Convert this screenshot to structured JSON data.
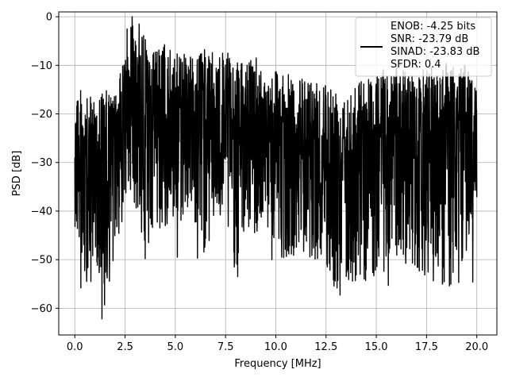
{
  "chart_data": {
    "type": "line",
    "title": "",
    "xlabel": "Frequency [MHz]",
    "ylabel": "PSD [dB]",
    "xlim": [
      -0.8,
      21.0
    ],
    "ylim": [
      -65.5,
      1.0
    ],
    "xticks": [
      0.0,
      2.5,
      5.0,
      7.5,
      10.0,
      12.5,
      15.0,
      17.5,
      20.0
    ],
    "xtick_labels": [
      "0.0",
      "2.5",
      "5.0",
      "7.5",
      "10.0",
      "12.5",
      "15.0",
      "17.5",
      "20.0"
    ],
    "yticks": [
      0,
      -10,
      -20,
      -30,
      -40,
      -50,
      -60
    ],
    "ytick_labels": [
      "0",
      "−10",
      "−20",
      "−30",
      "−40",
      "−50",
      "−60"
    ],
    "grid": true,
    "legend_position": "upper-right",
    "legend": [
      "ENOB: -4.25 bits",
      "SNR: -23.79 dB",
      "SINAD: -23.83 dB",
      "SFDR: 0.4"
    ],
    "series": [
      {
        "color": "#000000",
        "envelope": {
          "x": [
            0.0,
            0.5,
            1.0,
            1.5,
            2.0,
            2.3,
            2.5,
            2.7,
            2.8,
            3.0,
            3.2,
            3.5,
            4.0,
            4.5,
            5.0,
            5.5,
            6.0,
            6.5,
            7.0,
            7.5,
            8.0,
            8.5,
            9.0,
            9.5,
            10.0,
            11.0,
            12.0,
            13.0,
            14.0,
            15.0,
            16.0,
            17.0,
            18.0,
            19.0,
            20.0
          ],
          "upper": [
            -12,
            -17,
            -16,
            -15,
            -16,
            -11,
            -8,
            -3,
            0,
            -1,
            -2,
            -4,
            -7,
            -5,
            -8,
            -6,
            -9,
            -6,
            -8,
            -7,
            -9,
            -10,
            -7,
            -13,
            -10,
            -13,
            -12,
            -14,
            -13,
            -11,
            -10,
            -12,
            -9,
            -8,
            -13
          ],
          "lower": [
            -43,
            -56,
            -48,
            -62,
            -46,
            -45,
            -39,
            -37,
            -35,
            -40,
            -42,
            -50,
            -45,
            -44,
            -45,
            -41,
            -43,
            -50,
            -42,
            -44,
            -53,
            -44,
            -46,
            -43,
            -50,
            -49,
            -50,
            -57,
            -55,
            -54,
            -50,
            -52,
            -55,
            -58,
            -38
          ]
        },
        "dips": [
          {
            "x": 0.3,
            "y": -55.8
          },
          {
            "x": 0.8,
            "y": -54.5
          },
          {
            "x": 1.1,
            "y": -50.5
          },
          {
            "x": 1.35,
            "y": -62.2
          },
          {
            "x": 1.9,
            "y": -50.2
          },
          {
            "x": 3.5,
            "y": -49.8
          },
          {
            "x": 5.1,
            "y": -49.5
          },
          {
            "x": 6.1,
            "y": -49.7
          },
          {
            "x": 8.1,
            "y": -53.5
          },
          {
            "x": 9.8,
            "y": -50.0
          },
          {
            "x": 13.2,
            "y": -57.3
          },
          {
            "x": 14.2,
            "y": -53.0
          },
          {
            "x": 15.6,
            "y": -55.3
          },
          {
            "x": 19.1,
            "y": -54.7
          },
          {
            "x": 19.8,
            "y": -54.6
          }
        ],
        "peaks": [
          {
            "x": 2.85,
            "y": 0.0
          },
          {
            "x": 3.2,
            "y": -1.5
          },
          {
            "x": 2.6,
            "y": -2.5
          }
        ]
      }
    ]
  }
}
